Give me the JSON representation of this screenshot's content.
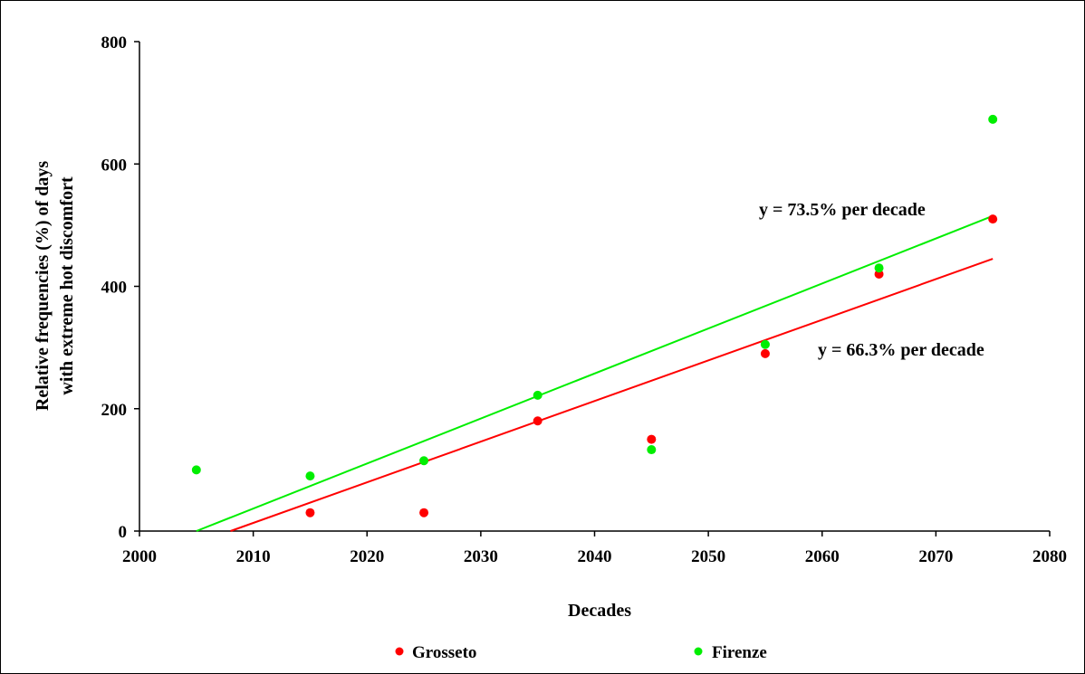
{
  "chart_data": {
    "type": "scatter",
    "xlabel": "Decades",
    "ylabel_lines": [
      "Relative frequencies (%) of days",
      "with extreme hot discomfort"
    ],
    "xlim": [
      2000,
      2080
    ],
    "ylim": [
      0,
      800
    ],
    "x_ticks": [
      2000,
      2010,
      2020,
      2030,
      2040,
      2050,
      2060,
      2070,
      2080
    ],
    "y_ticks": [
      0,
      200,
      400,
      600,
      800
    ],
    "grid": false,
    "legend_position": "bottom",
    "series": [
      {
        "name": "Grosseto",
        "color": "#ff0000",
        "points": [
          [
            2015,
            30
          ],
          [
            2025,
            30
          ],
          [
            2035,
            180
          ],
          [
            2045,
            150
          ],
          [
            2055,
            290
          ],
          [
            2065,
            420
          ],
          [
            2075,
            510
          ]
        ],
        "trend": {
          "x0": 2008,
          "y0": 0,
          "x1": 2075,
          "y1": 445
        },
        "trend_label": "y = 66.3% per decade"
      },
      {
        "name": "Firenze",
        "color": "#00ee00",
        "points": [
          [
            2005,
            100
          ],
          [
            2015,
            90
          ],
          [
            2025,
            115
          ],
          [
            2035,
            222
          ],
          [
            2045,
            133
          ],
          [
            2055,
            305
          ],
          [
            2065,
            430
          ],
          [
            2075,
            673
          ]
        ],
        "trend": {
          "x0": 2005,
          "y0": 0,
          "x1": 2075,
          "y1": 515
        },
        "trend_label": "y = 73.5% per decade"
      }
    ]
  }
}
